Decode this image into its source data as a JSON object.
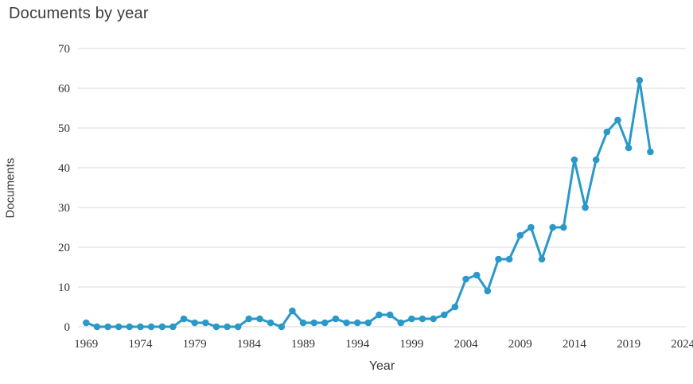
{
  "chart_data": {
    "type": "line",
    "title": "Documents by year",
    "xlabel": "Year",
    "ylabel": "Documents",
    "x": [
      1969,
      1970,
      1971,
      1972,
      1973,
      1974,
      1975,
      1976,
      1977,
      1978,
      1979,
      1980,
      1981,
      1982,
      1983,
      1984,
      1985,
      1986,
      1987,
      1988,
      1989,
      1990,
      1991,
      1992,
      1993,
      1994,
      1995,
      1996,
      1997,
      1998,
      1999,
      2000,
      2001,
      2002,
      2003,
      2004,
      2005,
      2006,
      2007,
      2008,
      2009,
      2010,
      2011,
      2012,
      2013,
      2014,
      2015,
      2016,
      2017,
      2018,
      2019,
      2020,
      2021
    ],
    "values": [
      1,
      0,
      0,
      0,
      0,
      0,
      0,
      0,
      0,
      2,
      1,
      1,
      0,
      0,
      0,
      2,
      2,
      1,
      0,
      4,
      1,
      1,
      1,
      2,
      1,
      1,
      1,
      3,
      3,
      1,
      2,
      2,
      2,
      3,
      5,
      12,
      13,
      9,
      17,
      17,
      23,
      25,
      17,
      25,
      25,
      42,
      30,
      42,
      49,
      52,
      45,
      62,
      44
    ],
    "x_ticks": [
      1969,
      1974,
      1979,
      1984,
      1989,
      1994,
      1999,
      2004,
      2009,
      2014,
      2019,
      2024
    ],
    "y_ticks": [
      0,
      10,
      20,
      30,
      40,
      50,
      60,
      70
    ],
    "xlim": [
      1969,
      2024
    ],
    "ylim": [
      0,
      70
    ],
    "grid": "horizontal-only",
    "legend": "none",
    "line_color": "#2a98c9",
    "grid_color": "#d9d9d9",
    "marker": "circle"
  }
}
